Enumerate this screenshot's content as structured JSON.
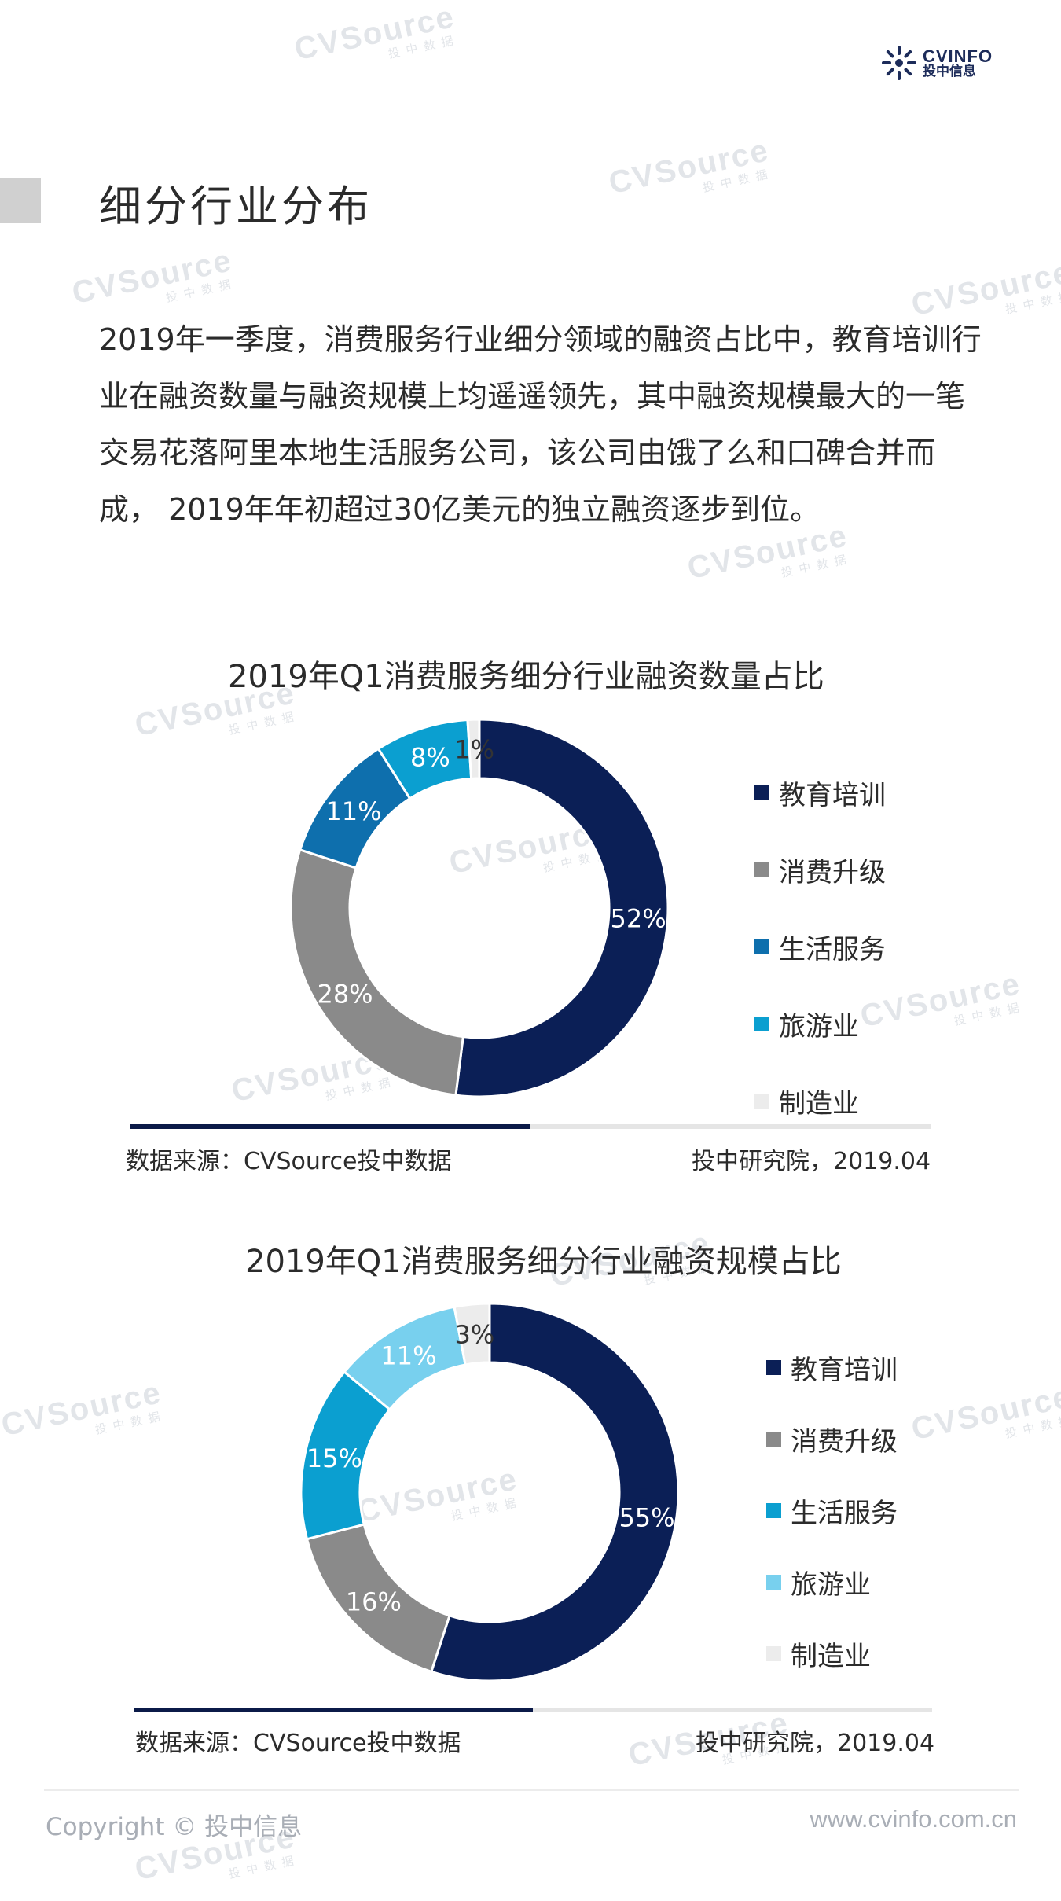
{
  "brand": {
    "name_en": "CVINFO",
    "name_cn": "投中信息"
  },
  "page_title": "细分行业分布",
  "intro": "2019年一季度，消费服务行业细分领域的融资占比中，教育培训行业在融资数量与融资规模上均遥遥领先，其中融资规模最大的一笔交易花落阿里本地生活服务公司，该公司由饿了么和口碑合并而成， 2019年年初超过30亿美元的独立融资逐步到位。",
  "watermark": {
    "text": "CVSource",
    "sub": "投中数据"
  },
  "chart_data": [
    {
      "type": "pie",
      "title": "2019年Q1消费服务细分行业融资数量占比",
      "categories": [
        "教育培训",
        "消费升级",
        "生活服务",
        "旅游业",
        "制造业"
      ],
      "values": [
        52,
        28,
        11,
        8,
        1
      ],
      "labels": [
        "52%",
        "28%",
        "11%",
        "8%",
        "1%"
      ],
      "colors": [
        "#0b1f56",
        "#8a8a8a",
        "#0e6fad",
        "#0b9fd0",
        "#ececec"
      ],
      "legend_position": "right",
      "source": "数据来源：CVSource投中数据",
      "credit": "投中研究院，2019.04"
    },
    {
      "type": "pie",
      "title": "2019年Q1消费服务细分行业融资规模占比",
      "categories": [
        "教育培训",
        "消费升级",
        "生活服务",
        "旅游业",
        "制造业"
      ],
      "values": [
        55,
        16,
        15,
        11,
        3
      ],
      "labels": [
        "55%",
        "16%",
        "15%",
        "11%",
        "3%"
      ],
      "colors": [
        "#0b1f56",
        "#8a8a8a",
        "#0b9fd0",
        "#78d0ee",
        "#ececec"
      ],
      "legend_position": "right",
      "source": "数据来源：CVSource投中数据",
      "credit": "投中研究院，2019.04"
    }
  ],
  "footer": {
    "copyright": "Copyright © 投中信息",
    "site": "www.cvinfo.com.cn"
  }
}
